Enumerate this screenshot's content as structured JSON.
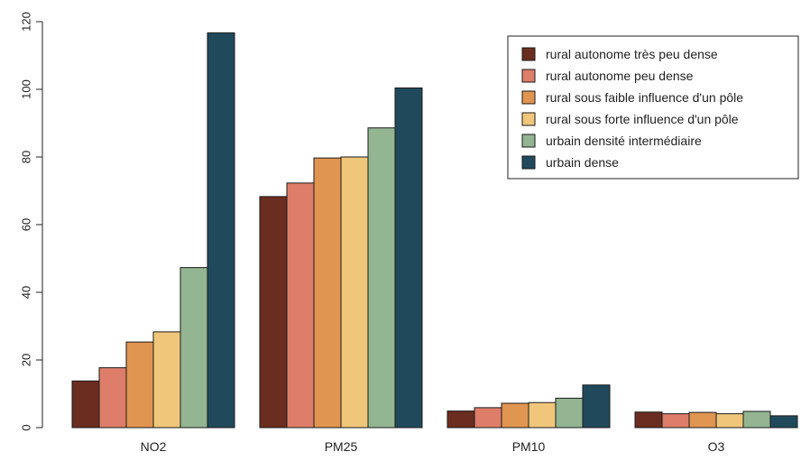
{
  "chart_data": {
    "type": "bar",
    "title": "",
    "xlabel": "",
    "ylabel": "",
    "ylim": [
      0,
      120
    ],
    "yticks": [
      0,
      20,
      40,
      60,
      80,
      100,
      120
    ],
    "grid": false,
    "legend_position": "top-right",
    "categories": [
      "NO2",
      "PM25",
      "PM10",
      "O3"
    ],
    "series": [
      {
        "name": "rural autonome très peu dense",
        "color": "#6b2d1f",
        "values": [
          13.8,
          68.3,
          4.9,
          4.6
        ]
      },
      {
        "name": "rural autonome peu dense",
        "color": "#de7d69",
        "values": [
          17.7,
          72.3,
          5.9,
          4.1
        ]
      },
      {
        "name": "rural sous faible influence d'un pôle",
        "color": "#e09550",
        "values": [
          25.3,
          79.7,
          7.2,
          4.5
        ]
      },
      {
        "name": "rural sous forte influence d'un pôle",
        "color": "#f0c77a",
        "values": [
          28.3,
          80.0,
          7.4,
          4.1
        ]
      },
      {
        "name": "urbain densité intermédiaire",
        "color": "#93b591",
        "values": [
          47.3,
          88.6,
          8.7,
          4.8
        ]
      },
      {
        "name": "urbain dense",
        "color": "#204a5c",
        "values": [
          116.7,
          100.4,
          12.6,
          3.5
        ]
      }
    ]
  }
}
